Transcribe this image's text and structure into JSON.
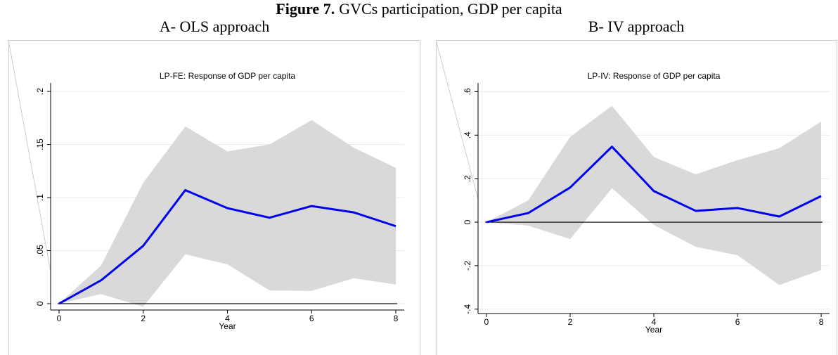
{
  "figure_label": "Figure 7.",
  "figure_title": "GVCs participation, GDP per capita",
  "chart_data": [
    {
      "type": "line",
      "panel_title": "A- OLS approach",
      "title": "LP-FE: Response of GDP per capita",
      "xlabel": "Year",
      "x": [
        0,
        1,
        2,
        3,
        4,
        5,
        6,
        7,
        8
      ],
      "values": [
        0,
        0.022,
        0.0545,
        0.107,
        0.09,
        0.081,
        0.092,
        0.086,
        0.073
      ],
      "upper": [
        0,
        0.036,
        0.114,
        0.167,
        0.1435,
        0.15,
        0.173,
        0.147,
        0.128
      ],
      "lower": [
        0,
        0.009,
        -0.003,
        0.0465,
        0.037,
        0.0125,
        0.012,
        0.024,
        0.018
      ],
      "color": "#0000ee",
      "band_color": "#d9d9d9",
      "hline": 0,
      "xlim": [
        -0.2,
        8.2
      ],
      "xticks": [
        0,
        2,
        4,
        6,
        8
      ],
      "ylim": [
        -0.006,
        0.208
      ],
      "yticks": [
        0,
        {
          "value": 0.05,
          "label": ".05"
        },
        {
          "value": 0.1,
          "label": ".1"
        },
        {
          "value": 0.15,
          "label": ".15"
        },
        {
          "value": 0.2,
          "label": ".2"
        }
      ],
      "grid": true
    },
    {
      "type": "line",
      "panel_title": "B- IV approach",
      "title": "LP-IV: Response of GDP per capita",
      "xlabel": "Year",
      "x": [
        0,
        1,
        2,
        3,
        4,
        5,
        6,
        7,
        8
      ],
      "values": [
        0,
        0.042,
        0.159,
        0.347,
        0.143,
        0.052,
        0.065,
        0.026,
        0.12
      ],
      "upper": [
        0,
        0.1,
        0.392,
        0.535,
        0.3,
        0.22,
        0.285,
        0.34,
        0.463
      ],
      "lower": [
        0,
        -0.016,
        -0.078,
        0.156,
        -0.013,
        -0.113,
        -0.152,
        -0.289,
        -0.22
      ],
      "color": "#0000ee",
      "band_color": "#d9d9d9",
      "hline": 0,
      "xlim": [
        -0.2,
        8.2
      ],
      "xticks": [
        0,
        2,
        4,
        6,
        8
      ],
      "ylim": [
        -0.42,
        0.64
      ],
      "yticks": [
        {
          "value": -0.4,
          "label": "-.4"
        },
        {
          "value": -0.2,
          "label": "-.2"
        },
        0,
        {
          "value": 0.2,
          "label": ".2"
        },
        {
          "value": 0.4,
          "label": ".4"
        },
        {
          "value": 0.6,
          "label": ".6"
        }
      ],
      "grid": true
    }
  ]
}
